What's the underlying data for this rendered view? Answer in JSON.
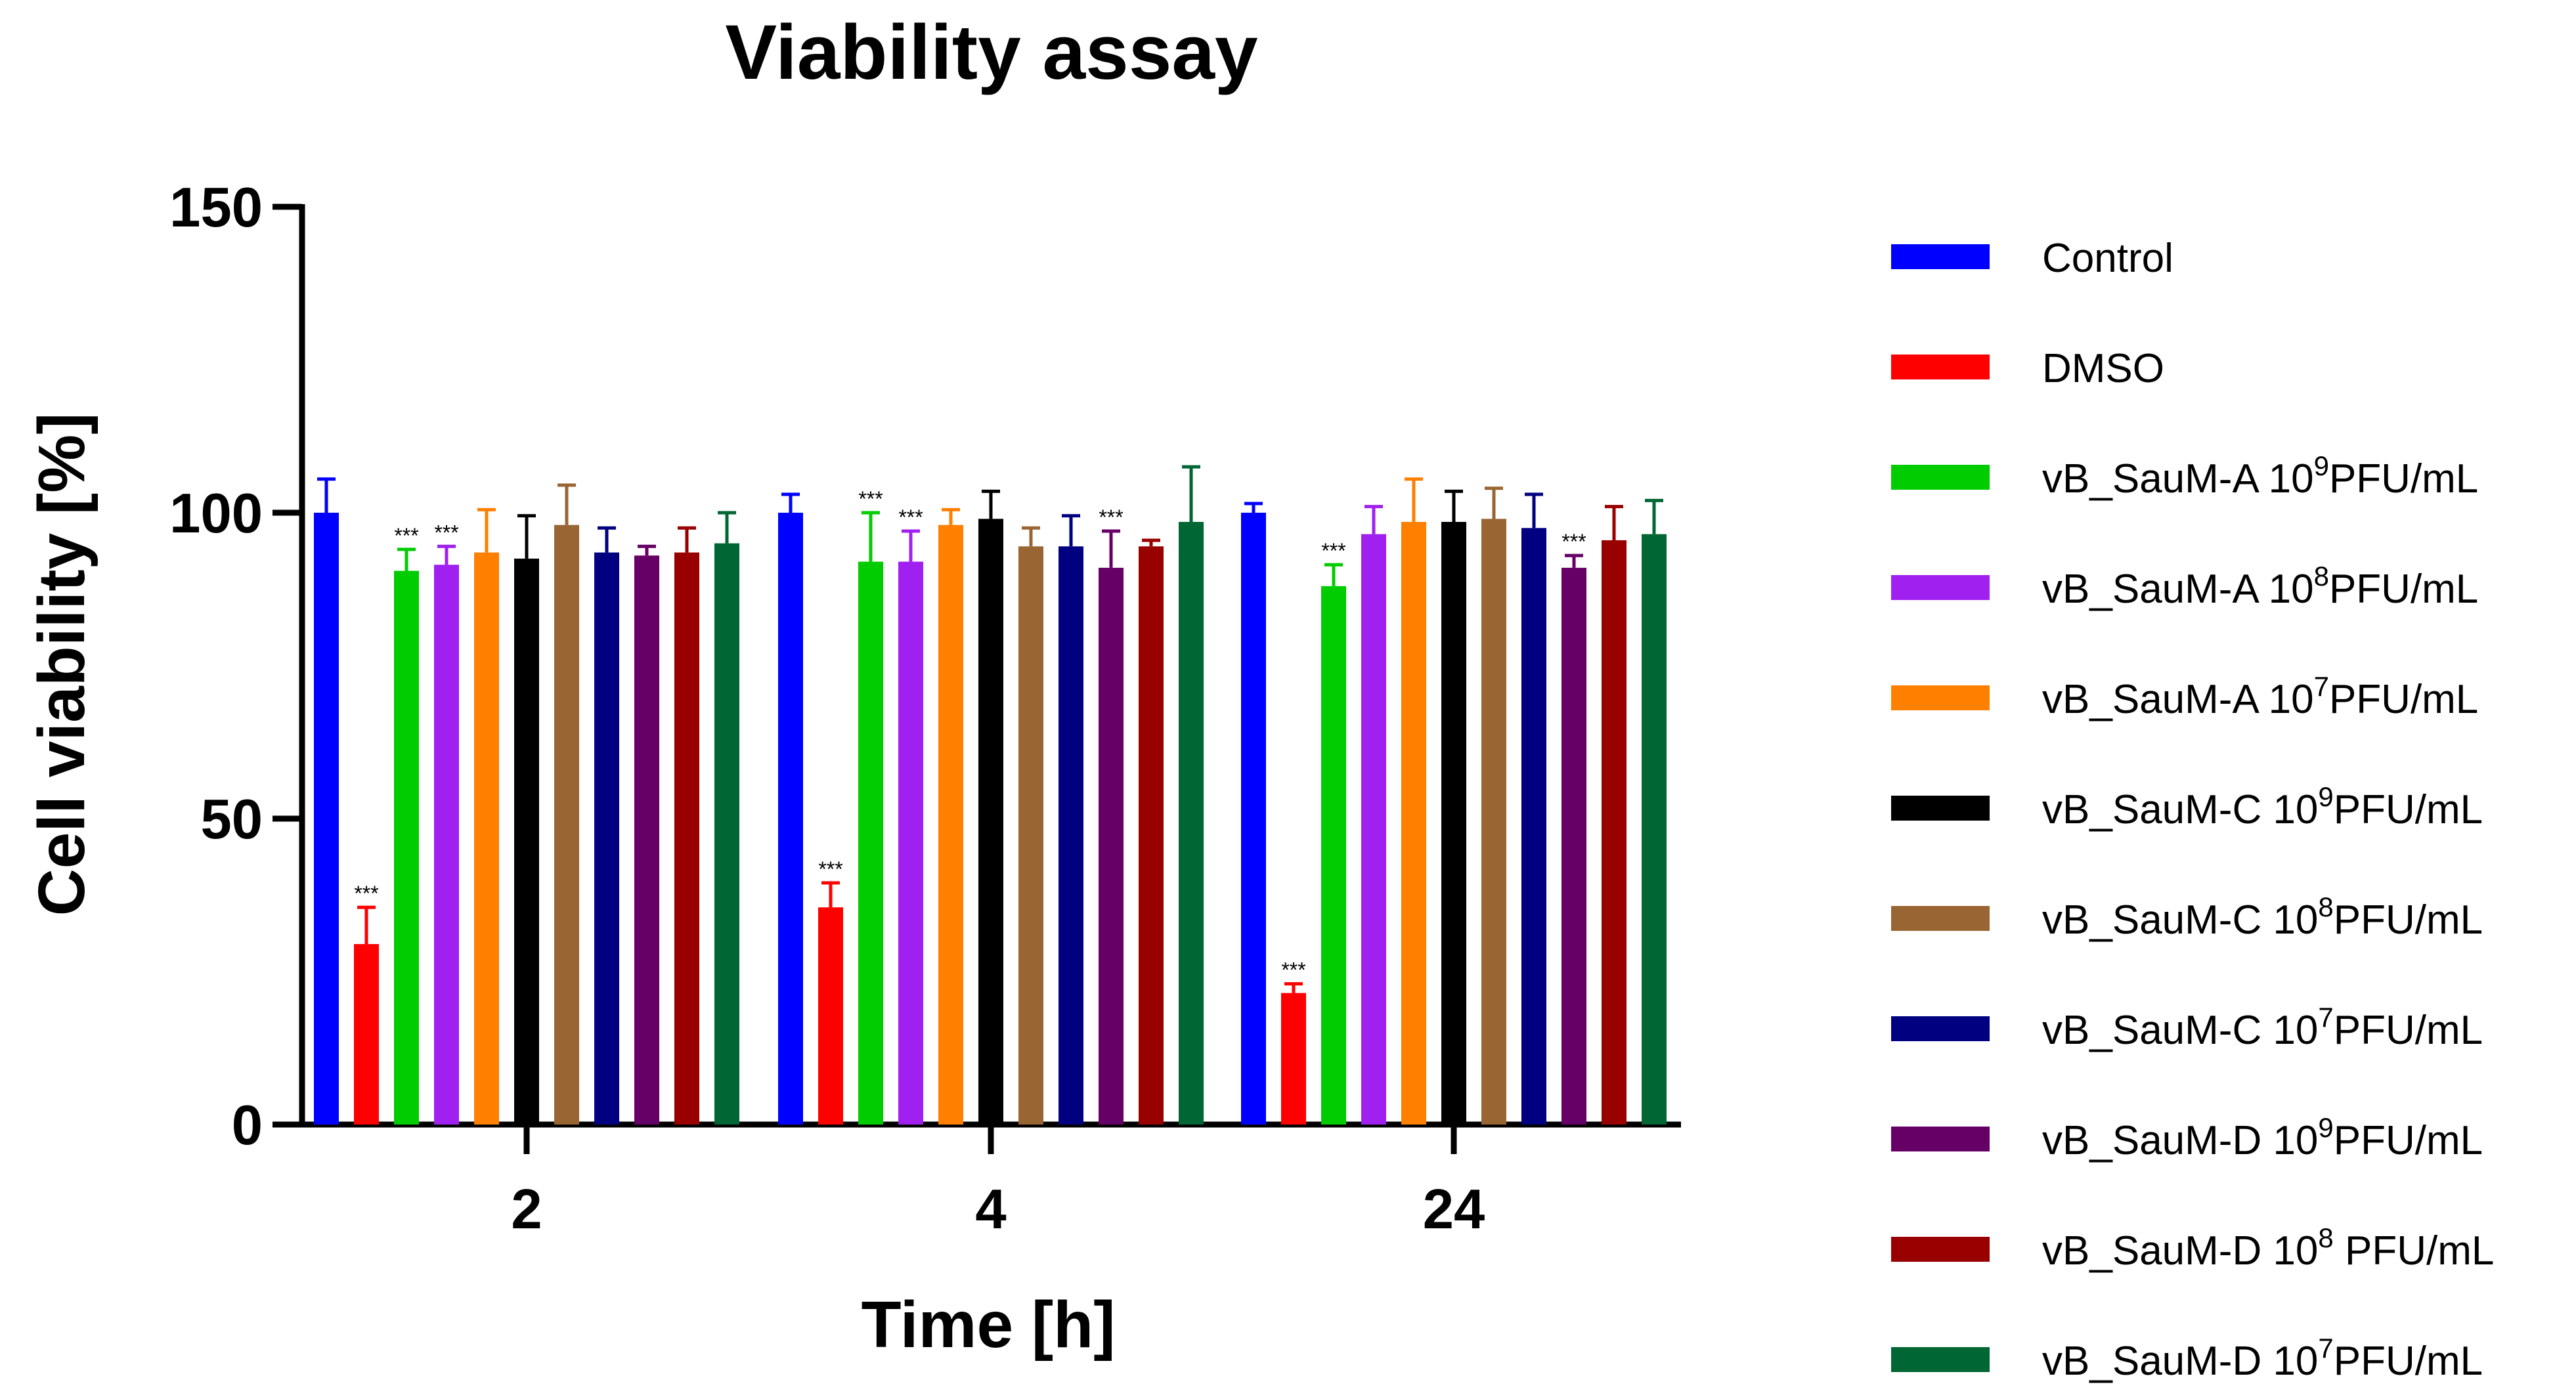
{
  "chart_data": {
    "type": "bar",
    "title": "Viability assay",
    "xlabel": "Time [h]",
    "ylabel": "Cell viability [%]",
    "ylim": [
      0,
      150
    ],
    "yticks": [
      0,
      50,
      100,
      150
    ],
    "categories": [
      "2",
      "4",
      "24"
    ],
    "series": [
      {
        "name": "Control",
        "color": "#0000ff",
        "values": [
          100,
          100,
          100
        ],
        "errors": [
          5.5,
          3,
          1.5
        ],
        "sig": [
          "",
          "",
          ""
        ]
      },
      {
        "name": "DMSO",
        "color": "#ff0000",
        "values": [
          29.5,
          35.5,
          21.5
        ],
        "errors": [
          6,
          4,
          1.5
        ],
        "sig": [
          "***",
          "***",
          "***"
        ]
      },
      {
        "name": "vB_SauM-A 10",
        "sup": "9",
        "tail": "PFU/mL",
        "color": "#00cc00",
        "values": [
          90.5,
          92,
          88
        ],
        "errors": [
          3.5,
          8,
          3.5
        ],
        "sig": [
          "***",
          "***",
          "***"
        ]
      },
      {
        "name": "vB_SauM-A 10",
        "sup": "8",
        "tail": "PFU/mL",
        "color": "#a020f0",
        "values": [
          91.5,
          92,
          96.5
        ],
        "errors": [
          3,
          5,
          4.5
        ],
        "sig": [
          "***",
          "***",
          ""
        ]
      },
      {
        "name": "vB_SauM-A 10",
        "sup": "7",
        "tail": "PFU/mL",
        "color": "#ff8000",
        "values": [
          93.5,
          98,
          98.5
        ],
        "errors": [
          7,
          2.5,
          7
        ],
        "sig": [
          "",
          "",
          ""
        ]
      },
      {
        "name": "vB_SauM-C 10",
        "sup": "9",
        "tail": "PFU/mL",
        "color": "#000000",
        "values": [
          92.5,
          99,
          98.5
        ],
        "errors": [
          7,
          4.5,
          5
        ],
        "sig": [
          "",
          "",
          ""
        ]
      },
      {
        "name": "vB_SauM-C 10",
        "sup": "8",
        "tail": "PFU/mL",
        "color": "#996633",
        "values": [
          98,
          94.5,
          99
        ],
        "errors": [
          6.5,
          3,
          5
        ],
        "sig": [
          "",
          "",
          ""
        ]
      },
      {
        "name": "vB_SauM-C 10",
        "sup": "7",
        "tail": "PFU/mL",
        "color": "#000080",
        "values": [
          93.5,
          94.5,
          97.5
        ],
        "errors": [
          4,
          5,
          5.5
        ],
        "sig": [
          "",
          "",
          ""
        ]
      },
      {
        "name": "vB_SauM-D 10",
        "sup": "9",
        "tail": "PFU/mL",
        "color": "#660066",
        "values": [
          93,
          91,
          91
        ],
        "errors": [
          1.5,
          6,
          2
        ],
        "sig": [
          "",
          "***",
          "***"
        ]
      },
      {
        "name": "vB_SauM-D 10",
        "sup": "8",
        "tail": " PFU/mL",
        "color": "#990000",
        "values": [
          93.5,
          94.5,
          95.5
        ],
        "errors": [
          4,
          1,
          5.5
        ],
        "sig": [
          "",
          "",
          ""
        ]
      },
      {
        "name": "vB_SauM-D 10",
        "sup": "7",
        "tail": "PFU/mL",
        "color": "#006633",
        "values": [
          95,
          98.5,
          96.5
        ],
        "errors": [
          5,
          9,
          5.5
        ],
        "sig": [
          "",
          "",
          ""
        ]
      }
    ],
    "error_bars": "upper",
    "legend_position": "right",
    "grid": false
  }
}
